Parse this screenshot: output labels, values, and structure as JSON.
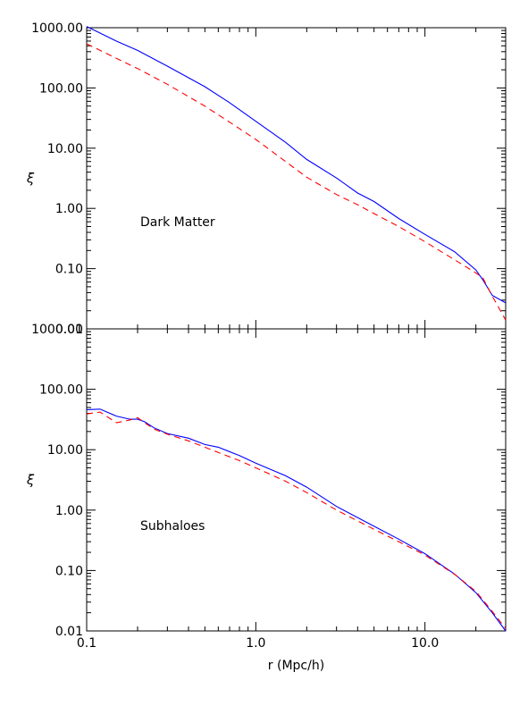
{
  "chart_data": [
    {
      "type": "line",
      "annotation": "Dark Matter",
      "xlabel": "",
      "ylabel": "ξ",
      "xscale": "log",
      "yscale": "log",
      "xlim": [
        0.1,
        30
      ],
      "ylim": [
        0.01,
        1000
      ],
      "xticks": [],
      "yticks": [
        "1000.00",
        "100.00",
        "10.00",
        "1.00",
        "0.10",
        "0.01"
      ],
      "series": [
        {
          "color": "#0000ff",
          "dash": "solid",
          "x": [
            0.1,
            0.15,
            0.2,
            0.3,
            0.5,
            0.7,
            1.0,
            1.5,
            2.0,
            3.0,
            4.0,
            5.0,
            7.0,
            10.0,
            15.0,
            20.0,
            22.0,
            25.0,
            30.0
          ],
          "y": [
            1050,
            600,
            420,
            230,
            105,
            57,
            28,
            12.5,
            6.5,
            3.2,
            1.8,
            1.3,
            0.68,
            0.37,
            0.19,
            0.095,
            0.065,
            0.036,
            0.027
          ]
        },
        {
          "color": "#ff0000",
          "dash": "dashed",
          "x": [
            0.1,
            0.15,
            0.2,
            0.3,
            0.5,
            0.7,
            1.0,
            1.5,
            2.0,
            3.0,
            4.0,
            5.0,
            7.0,
            10.0,
            15.0,
            20.0,
            22.0,
            25.0,
            30.0
          ],
          "y": [
            540,
            310,
            210,
            115,
            50,
            27,
            14,
            6.0,
            3.3,
            1.7,
            1.15,
            0.82,
            0.5,
            0.28,
            0.14,
            0.085,
            0.07,
            0.035,
            0.014
          ]
        }
      ]
    },
    {
      "type": "line",
      "annotation": "Subhaloes",
      "xlabel": "r (Mpc/h)",
      "ylabel": "ξ",
      "xscale": "log",
      "yscale": "log",
      "xlim": [
        0.1,
        30
      ],
      "ylim": [
        0.01,
        1000
      ],
      "xticks": [
        "0.1",
        "1.0",
        "10.0"
      ],
      "yticks": [
        "1000.00",
        "100.00",
        "10.00",
        "1.00",
        "0.10",
        "0.01"
      ],
      "series": [
        {
          "color": "#0000ff",
          "dash": "solid",
          "x": [
            0.1,
            0.12,
            0.15,
            0.18,
            0.2,
            0.22,
            0.25,
            0.3,
            0.4,
            0.5,
            0.6,
            0.8,
            1.0,
            1.5,
            2.0,
            3.0,
            5.0,
            7.0,
            10.0,
            15.0,
            20.0,
            25.0,
            30.0
          ],
          "y": [
            46,
            47,
            36,
            32,
            32,
            29,
            23,
            18.5,
            15.5,
            12.2,
            11,
            8.0,
            6.0,
            3.7,
            2.4,
            1.15,
            0.54,
            0.33,
            0.19,
            0.087,
            0.043,
            0.02,
            0.01
          ]
        },
        {
          "color": "#ff0000",
          "dash": "dashed",
          "x": [
            0.1,
            0.12,
            0.15,
            0.18,
            0.2,
            0.22,
            0.25,
            0.3,
            0.4,
            0.5,
            0.6,
            0.8,
            1.0,
            1.5,
            2.0,
            3.0,
            5.0,
            7.0,
            10.0,
            15.0,
            20.0,
            25.0,
            30.0
          ],
          "y": [
            39,
            42,
            28,
            31,
            34,
            28,
            22,
            18,
            14,
            11,
            9,
            6.6,
            5.0,
            3.0,
            1.95,
            1.0,
            0.48,
            0.3,
            0.18,
            0.086,
            0.045,
            0.021,
            0.011
          ]
        }
      ]
    }
  ]
}
